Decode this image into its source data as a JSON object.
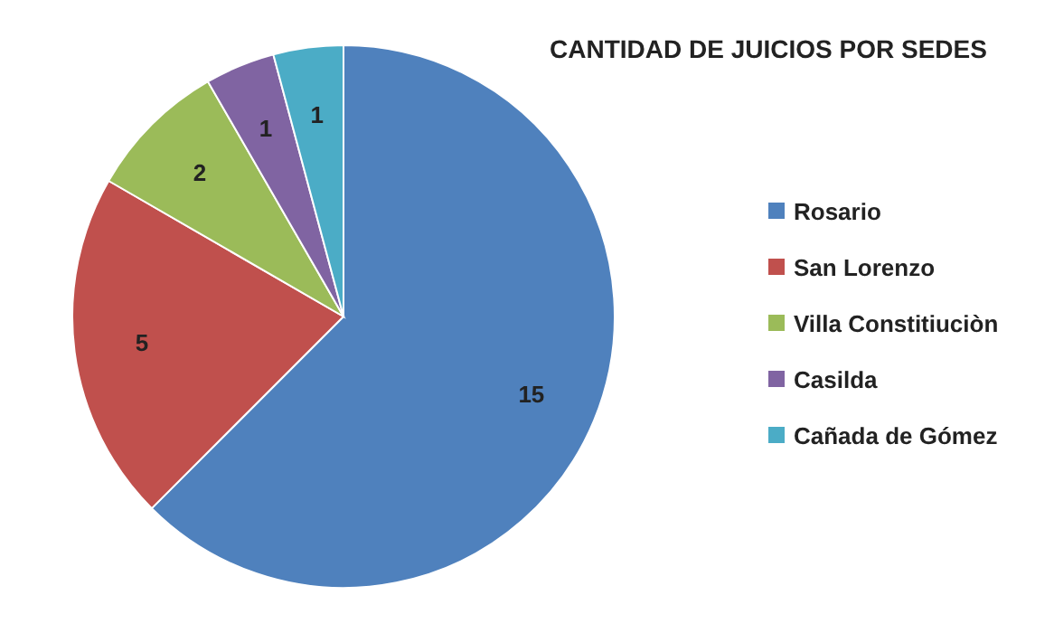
{
  "chart_data": {
    "type": "pie",
    "title": "CANTIDAD DE JUICIOS POR SEDES",
    "categories": [
      "Rosario",
      "San Lorenzo",
      "Villa Constitiuciòn",
      "Casilda",
      "Cañada de Gómez"
    ],
    "values": [
      15,
      5,
      2,
      1,
      1
    ],
    "colors": [
      "#4f81bd",
      "#c0504d",
      "#9bbb59",
      "#8064a2",
      "#4bacc6"
    ],
    "data_labels": true,
    "legend": "right"
  }
}
